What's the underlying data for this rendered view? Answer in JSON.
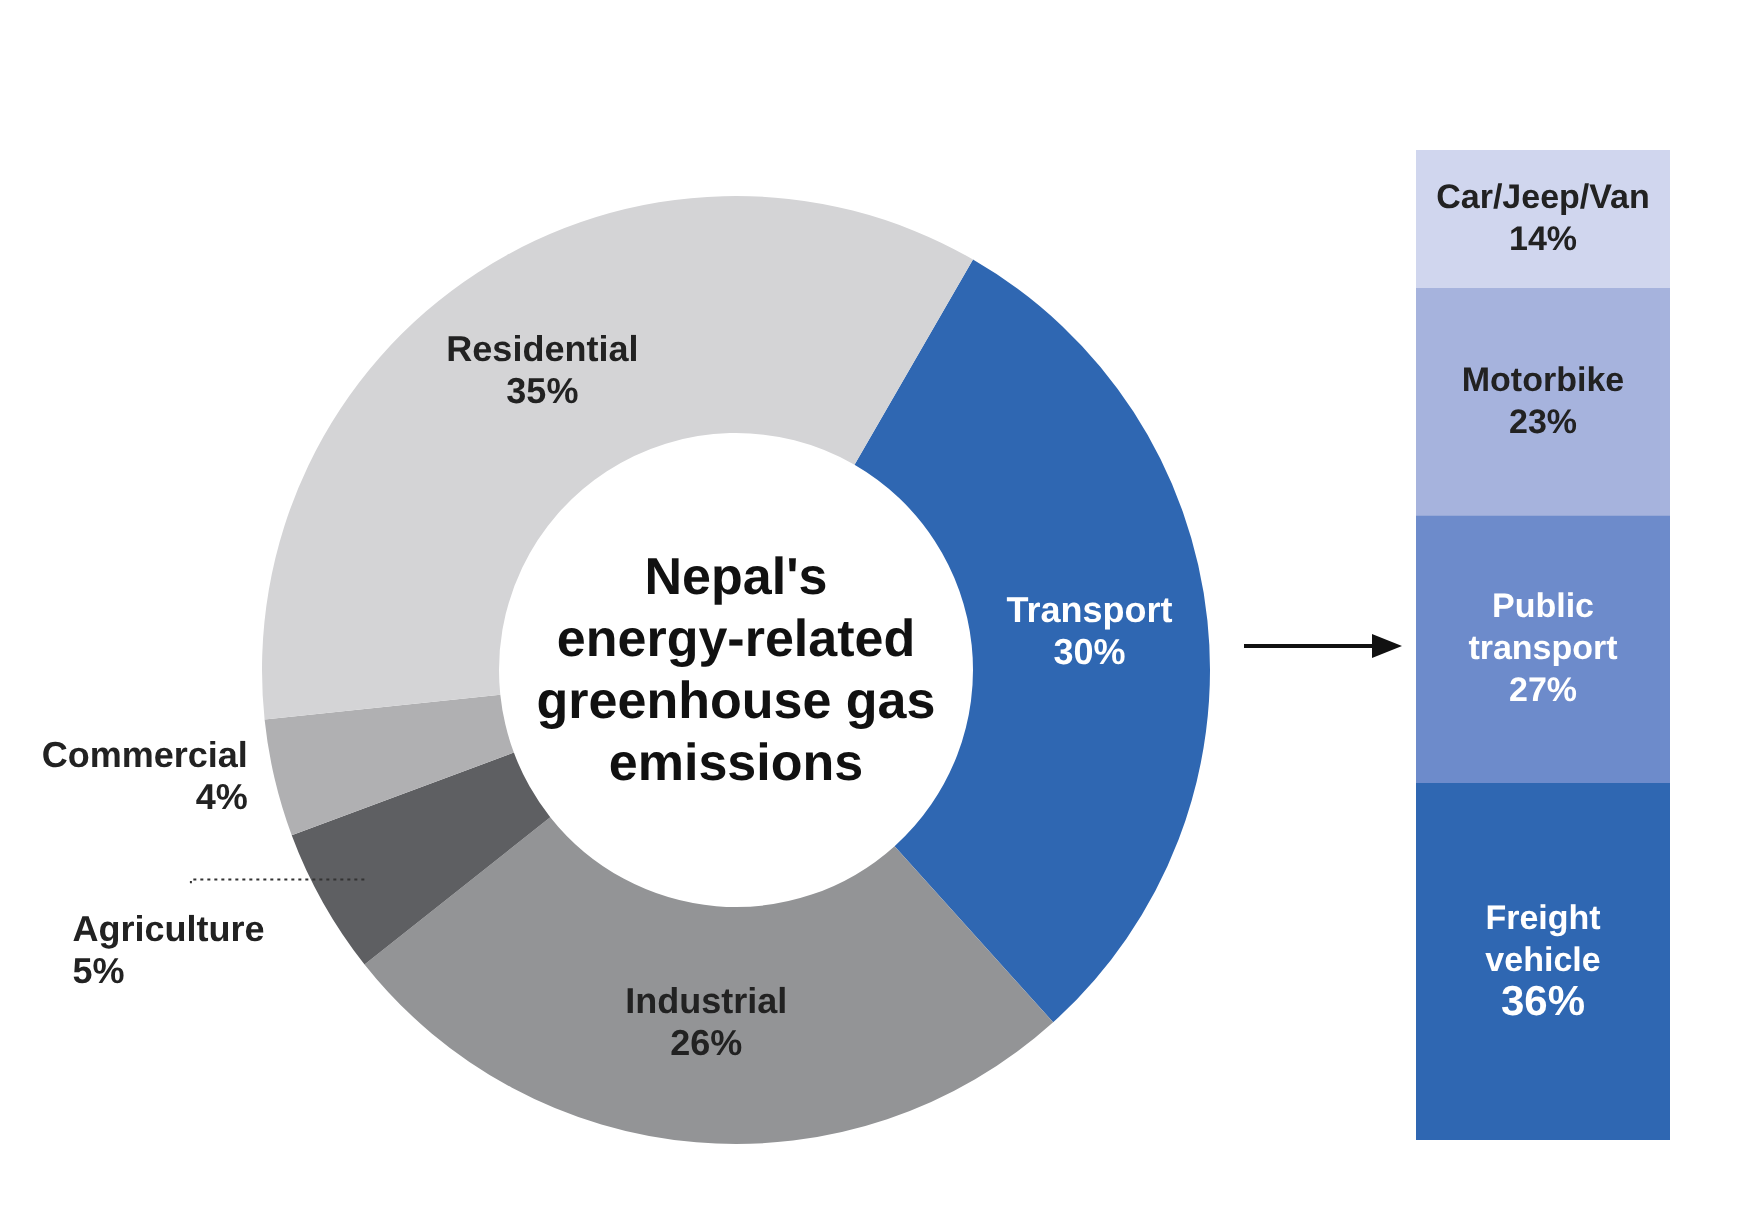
{
  "chart_data": [
    {
      "type": "donut",
      "title": "Nepal's energy-related greenhouse gas emissions",
      "categories": [
        "Transport",
        "Industrial",
        "Agriculture",
        "Commercial",
        "Residential"
      ],
      "values": [
        30,
        26,
        5,
        4,
        35
      ],
      "colors": [
        "#2f67b2",
        "#939496",
        "#5e5f62",
        "#b0b0b2",
        "#d4d4d6"
      ],
      "value_labels": [
        "30%",
        "26%",
        "5%",
        "4%",
        "35%"
      ],
      "legend": false
    },
    {
      "type": "bar",
      "stacked": true,
      "categories": [
        null
      ],
      "series": [
        {
          "name": "Freight vehicle",
          "color": "#2f67b2",
          "values": [
            36
          ],
          "value_labels": [
            "36%"
          ]
        },
        {
          "name": "Public transport",
          "color": "#6d8bcb",
          "values": [
            27
          ],
          "value_labels": [
            "27%"
          ]
        },
        {
          "name": "Motorbike",
          "color": "#a6b3dd",
          "values": [
            23
          ],
          "value_labels": [
            "23%"
          ]
        },
        {
          "name": "Car/Jeep/Van",
          "color": "#d0d6ee",
          "values": [
            14
          ],
          "value_labels": [
            "14%"
          ]
        }
      ],
      "legend": false
    }
  ]
}
